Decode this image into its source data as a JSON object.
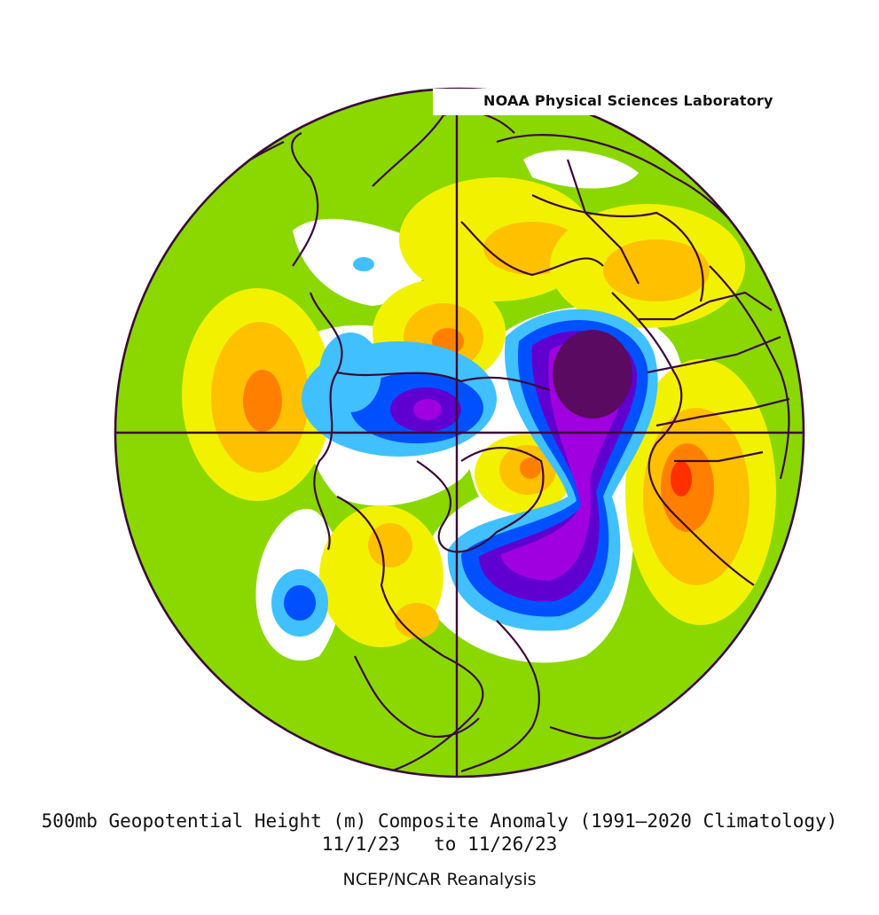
{
  "credit": "NOAA Physical Sciences Laboratory",
  "caption": {
    "title": "500mb Geopotential Height (m) Composite Anomaly (1991–2020 Climatology)",
    "date_range": "11/1/23   to 11/26/23",
    "source": "NCEP/NCAR Reanalysis"
  },
  "colors": {
    "background_anomaly": "#8bd800",
    "near_zero": "#ffffff",
    "pos_1": "#f2f200",
    "pos_2": "#ffc000",
    "pos_3": "#ff8000",
    "pos_4": "#ff3000",
    "neg_1": "#40c0ff",
    "neg_2": "#0050ff",
    "neg_3": "#6000d0",
    "neg_4": "#a000e0",
    "neg_5": "#5a0a60",
    "coastline": "#3a0a3a"
  }
}
